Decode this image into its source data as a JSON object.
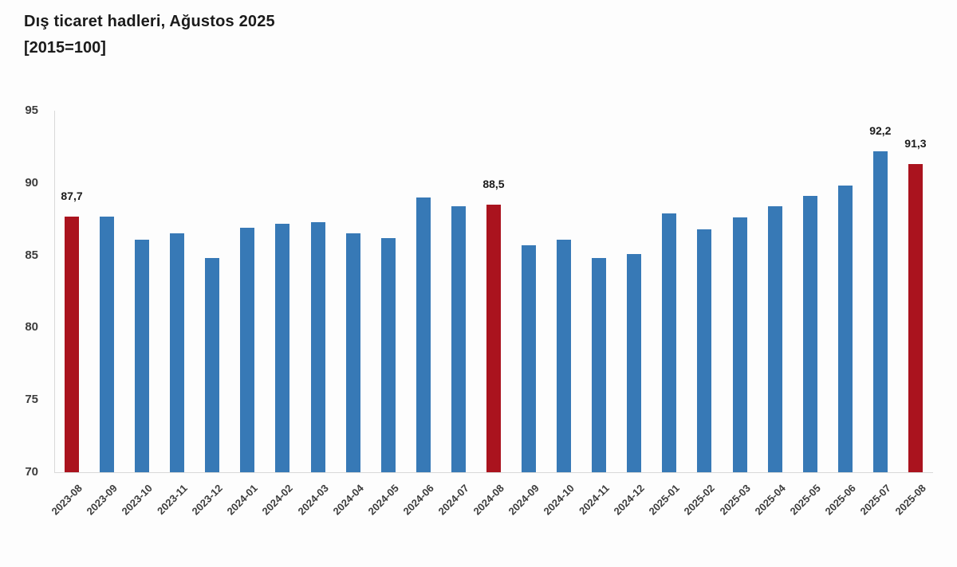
{
  "title": {
    "line1": "Dış ticaret hadleri, Ağustos 2025",
    "line2": "[2015=100]"
  },
  "colors": {
    "bar_default": "#3779b6",
    "bar_highlight": "#aa131e",
    "axis_line": "#d9d9d9",
    "title_text": "#1b1b1b",
    "tick_text": "#3d3d3d"
  },
  "chart_data": {
    "type": "bar",
    "title": "Dış ticaret hadleri, Ağustos 2025",
    "subtitle": "[2015=100]",
    "xlabel": "",
    "ylabel": "",
    "ylim": [
      70,
      95
    ],
    "yticks": [
      70,
      75,
      80,
      85,
      90,
      95
    ],
    "grid": false,
    "legend": false,
    "categories": [
      "2023-08",
      "2023-09",
      "2023-10",
      "2023-11",
      "2023-12",
      "2024-01",
      "2024-02",
      "2024-03",
      "2024-04",
      "2024-05",
      "2024-06",
      "2024-07",
      "2024-08",
      "2024-09",
      "2024-10",
      "2024-11",
      "2024-12",
      "2025-01",
      "2025-02",
      "2025-03",
      "2025-04",
      "2025-05",
      "2025-06",
      "2025-07",
      "2025-08"
    ],
    "values": [
      87.7,
      87.7,
      86.1,
      86.5,
      84.8,
      86.9,
      87.2,
      87.3,
      86.5,
      86.2,
      89.0,
      88.4,
      88.5,
      85.7,
      86.1,
      84.8,
      85.1,
      87.9,
      86.8,
      87.6,
      88.4,
      89.1,
      89.8,
      92.2,
      91.3
    ],
    "highlighted_categories": [
      "2023-08",
      "2024-08",
      "2025-08"
    ],
    "point_labels": [
      {
        "category": "2023-08",
        "label": "87,7"
      },
      {
        "category": "2024-08",
        "label": "88,5"
      },
      {
        "category": "2025-07",
        "label": "92,2"
      },
      {
        "category": "2025-08",
        "label": "91,3"
      }
    ]
  }
}
